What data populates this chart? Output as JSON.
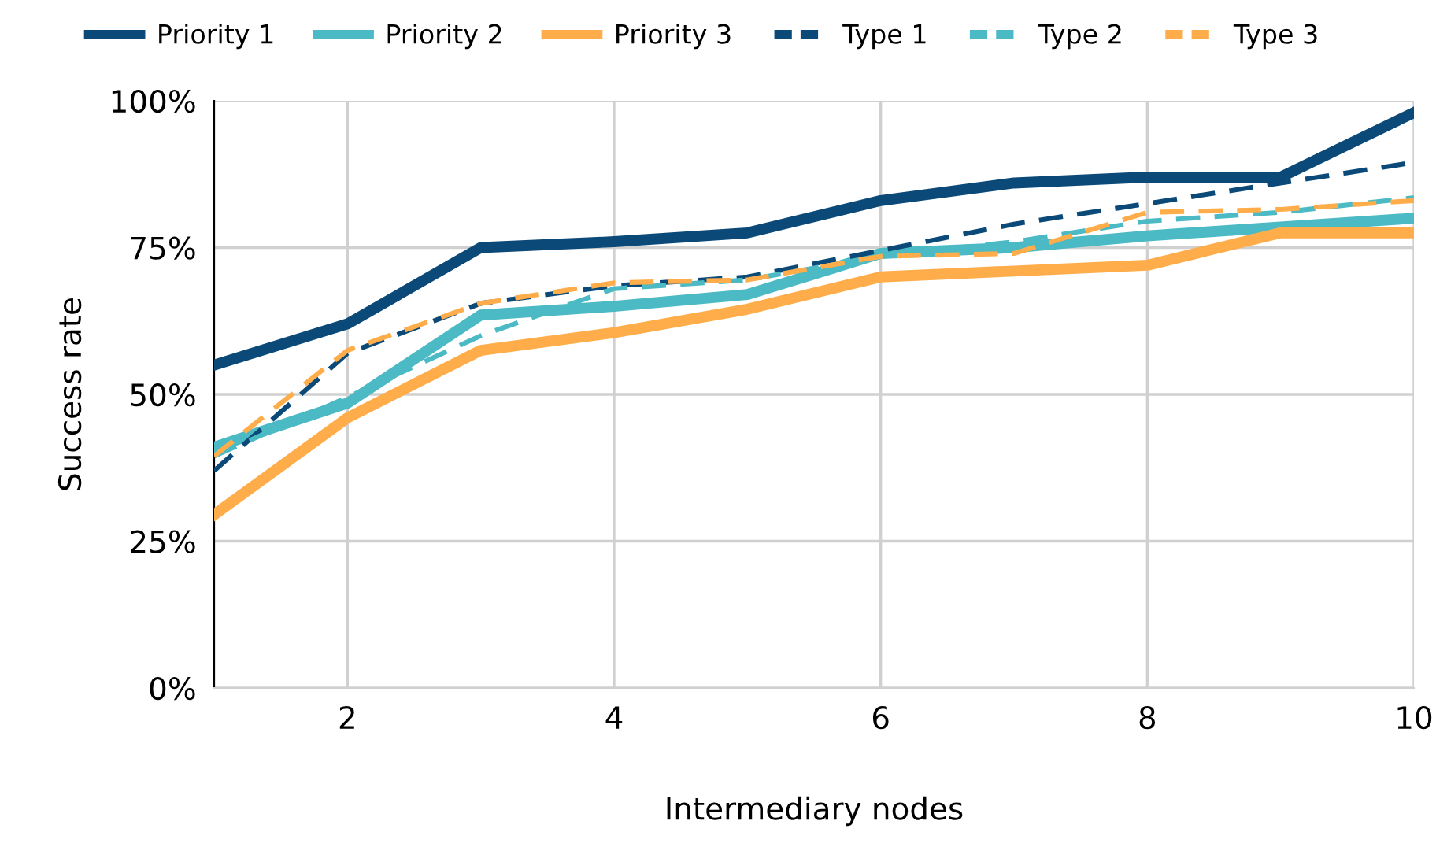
{
  "chart_data": {
    "type": "line",
    "xlabel": "Intermediary nodes",
    "ylabel": "Success rate",
    "x": [
      1,
      2,
      3,
      4,
      5,
      6,
      7,
      8,
      9,
      10
    ],
    "xlim": [
      1,
      10
    ],
    "xticks": [
      2,
      4,
      6,
      8,
      10
    ],
    "ylim": [
      0,
      100
    ],
    "yticks": [
      {
        "value": 0,
        "label": "0%"
      },
      {
        "value": 25,
        "label": "25%"
      },
      {
        "value": 50,
        "label": "50%"
      },
      {
        "value": 75,
        "label": "75%"
      },
      {
        "value": 100,
        "label": "100%"
      }
    ],
    "grid": true,
    "legend": "top",
    "marker": "none",
    "series": [
      {
        "name": "Priority 1",
        "color": "#0b4a78",
        "line_style": "solid",
        "values": [
          55,
          62,
          75,
          76,
          77.5,
          83,
          86,
          87,
          87,
          98
        ]
      },
      {
        "name": "Priority 2",
        "color": "#4bbac4",
        "line_style": "solid",
        "values": [
          41,
          48.5,
          63.5,
          65,
          67,
          74,
          75,
          77,
          78.5,
          80
        ]
      },
      {
        "name": "Priority 3",
        "color": "#ffad4a",
        "line_style": "solid",
        "values": [
          29.5,
          46,
          57.5,
          60.5,
          64.5,
          70,
          71,
          72,
          77.5,
          77.5
        ]
      },
      {
        "name": "Type 1",
        "color": "#0b4a78",
        "line_style": "dashed",
        "values": [
          37,
          57,
          65.5,
          68.5,
          70,
          74.5,
          79,
          82.5,
          86,
          89.5
        ]
      },
      {
        "name": "Type 2",
        "color": "#4bbac4",
        "line_style": "dashed",
        "values": [
          39.5,
          49.5,
          60,
          68,
          69.5,
          73.5,
          76,
          79.5,
          81,
          83.5
        ]
      },
      {
        "name": "Type 3",
        "color": "#ffad4a",
        "line_style": "dashed",
        "values": [
          39.5,
          57.5,
          65.5,
          69,
          69.5,
          73.5,
          74,
          81,
          81.5,
          83
        ]
      }
    ]
  }
}
